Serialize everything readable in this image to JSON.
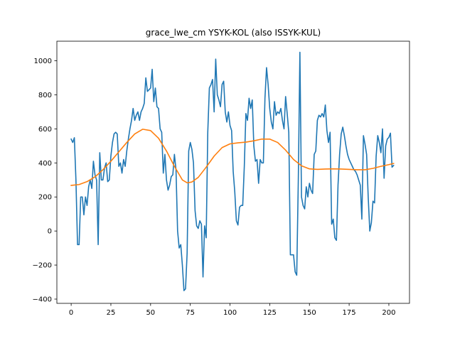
{
  "chart_data": {
    "type": "line",
    "title": "grace_lwe_cm YSYK-KOL (also ISSYK-KUL)",
    "xlabel": "",
    "ylabel": "",
    "xlim": [
      -9,
      213
    ],
    "ylim": [
      -425,
      1115
    ],
    "xticks": [
      0,
      25,
      50,
      75,
      100,
      125,
      150,
      175,
      200
    ],
    "yticks": [
      -400,
      -200,
      0,
      200,
      400,
      600,
      800,
      1000
    ],
    "grid": false,
    "legend": "none",
    "colors": {
      "series_0": "#1f77b4",
      "series_1": "#ff7f0e"
    },
    "series": [
      {
        "points": [
          [
            0,
            540
          ],
          [
            1,
            520
          ],
          [
            2,
            548
          ],
          [
            3,
            300
          ],
          [
            4,
            -80
          ],
          [
            5,
            -80
          ],
          [
            6,
            200
          ],
          [
            7,
            200
          ],
          [
            8,
            95
          ],
          [
            9,
            200
          ],
          [
            10,
            150
          ],
          [
            11,
            260
          ],
          [
            12,
            300
          ],
          [
            13,
            250
          ],
          [
            14,
            410
          ],
          [
            15,
            330
          ],
          [
            16,
            300
          ],
          [
            17,
            -80
          ],
          [
            18,
            460
          ],
          [
            19,
            300
          ],
          [
            20,
            300
          ],
          [
            21,
            370
          ],
          [
            22,
            400
          ],
          [
            23,
            290
          ],
          [
            24,
            300
          ],
          [
            25,
            440
          ],
          [
            26,
            520
          ],
          [
            27,
            570
          ],
          [
            28,
            580
          ],
          [
            29,
            570
          ],
          [
            30,
            380
          ],
          [
            31,
            400
          ],
          [
            32,
            340
          ],
          [
            33,
            420
          ],
          [
            34,
            380
          ],
          [
            35,
            470
          ],
          [
            36,
            540
          ],
          [
            37,
            600
          ],
          [
            38,
            650
          ],
          [
            39,
            720
          ],
          [
            40,
            650
          ],
          [
            41,
            680
          ],
          [
            42,
            700
          ],
          [
            43,
            650
          ],
          [
            44,
            700
          ],
          [
            45,
            720
          ],
          [
            46,
            750
          ],
          [
            47,
            900
          ],
          [
            48,
            820
          ],
          [
            49,
            830
          ],
          [
            50,
            840
          ],
          [
            51,
            950
          ],
          [
            52,
            760
          ],
          [
            53,
            840
          ],
          [
            54,
            730
          ],
          [
            55,
            720
          ],
          [
            56,
            600
          ],
          [
            57,
            580
          ],
          [
            58,
            340
          ],
          [
            59,
            450
          ],
          [
            60,
            300
          ],
          [
            61,
            240
          ],
          [
            62,
            270
          ],
          [
            63,
            320
          ],
          [
            64,
            330
          ],
          [
            65,
            450
          ],
          [
            66,
            360
          ],
          [
            67,
            0
          ],
          [
            68,
            -100
          ],
          [
            69,
            -80
          ],
          [
            70,
            -200
          ],
          [
            71,
            -350
          ],
          [
            72,
            -340
          ],
          [
            73,
            -130
          ],
          [
            74,
            470
          ],
          [
            75,
            520
          ],
          [
            76,
            480
          ],
          [
            77,
            400
          ],
          [
            78,
            120
          ],
          [
            79,
            30
          ],
          [
            80,
            15
          ],
          [
            81,
            60
          ],
          [
            82,
            40
          ],
          [
            83,
            -270
          ],
          [
            84,
            30
          ],
          [
            85,
            -40
          ],
          [
            86,
            580
          ],
          [
            87,
            840
          ],
          [
            88,
            860
          ],
          [
            89,
            890
          ],
          [
            90,
            700
          ],
          [
            91,
            1010
          ],
          [
            92,
            800
          ],
          [
            93,
            770
          ],
          [
            94,
            730
          ],
          [
            95,
            860
          ],
          [
            96,
            880
          ],
          [
            97,
            700
          ],
          [
            98,
            640
          ],
          [
            99,
            700
          ],
          [
            100,
            620
          ],
          [
            101,
            590
          ],
          [
            102,
            350
          ],
          [
            103,
            230
          ],
          [
            104,
            60
          ],
          [
            105,
            35
          ],
          [
            106,
            140
          ],
          [
            107,
            150
          ],
          [
            108,
            150
          ],
          [
            109,
            380
          ],
          [
            110,
            690
          ],
          [
            111,
            650
          ],
          [
            112,
            780
          ],
          [
            113,
            720
          ],
          [
            114,
            770
          ],
          [
            115,
            500
          ],
          [
            116,
            410
          ],
          [
            117,
            420
          ],
          [
            118,
            280
          ],
          [
            119,
            420
          ],
          [
            120,
            400
          ],
          [
            121,
            400
          ],
          [
            122,
            780
          ],
          [
            123,
            960
          ],
          [
            124,
            860
          ],
          [
            125,
            720
          ],
          [
            126,
            640
          ],
          [
            127,
            600
          ],
          [
            128,
            760
          ],
          [
            129,
            680
          ],
          [
            130,
            700
          ],
          [
            131,
            690
          ],
          [
            132,
            720
          ],
          [
            133,
            650
          ],
          [
            134,
            600
          ],
          [
            135,
            790
          ],
          [
            136,
            690
          ],
          [
            137,
            580
          ],
          [
            138,
            -140
          ],
          [
            139,
            -140
          ],
          [
            140,
            -140
          ],
          [
            141,
            -240
          ],
          [
            142,
            -260
          ],
          [
            143,
            300
          ],
          [
            144,
            1050
          ],
          [
            145,
            200
          ],
          [
            146,
            150
          ],
          [
            147,
            130
          ],
          [
            148,
            260
          ],
          [
            149,
            200
          ],
          [
            150,
            280
          ],
          [
            151,
            240
          ],
          [
            152,
            220
          ],
          [
            153,
            450
          ],
          [
            154,
            470
          ],
          [
            155,
            650
          ],
          [
            156,
            680
          ],
          [
            157,
            670
          ],
          [
            158,
            690
          ],
          [
            159,
            670
          ],
          [
            160,
            740
          ],
          [
            161,
            590
          ],
          [
            162,
            520
          ],
          [
            163,
            580
          ],
          [
            164,
            40
          ],
          [
            165,
            70
          ],
          [
            166,
            -40
          ],
          [
            167,
            -55
          ],
          [
            168,
            270
          ],
          [
            169,
            450
          ],
          [
            170,
            570
          ],
          [
            171,
            610
          ],
          [
            172,
            560
          ],
          [
            173,
            500
          ],
          [
            174,
            450
          ],
          [
            175,
            420
          ],
          [
            176,
            400
          ],
          [
            177,
            380
          ],
          [
            178,
            360
          ],
          [
            179,
            350
          ],
          [
            180,
            330
          ],
          [
            181,
            300
          ],
          [
            182,
            270
          ],
          [
            183,
            70
          ],
          [
            184,
            560
          ],
          [
            185,
            510
          ],
          [
            186,
            450
          ],
          [
            187,
            200
          ],
          [
            188,
            0
          ],
          [
            189,
            50
          ],
          [
            190,
            175
          ],
          [
            191,
            165
          ],
          [
            192,
            440
          ],
          [
            193,
            560
          ],
          [
            194,
            520
          ],
          [
            195,
            460
          ],
          [
            196,
            600
          ],
          [
            197,
            310
          ],
          [
            198,
            500
          ],
          [
            199,
            540
          ],
          [
            200,
            550
          ],
          [
            201,
            575
          ],
          [
            202,
            375
          ],
          [
            203,
            385
          ]
        ]
      },
      {
        "points": [
          [
            0,
            268
          ],
          [
            5,
            273
          ],
          [
            10,
            290
          ],
          [
            15,
            318
          ],
          [
            20,
            360
          ],
          [
            25,
            410
          ],
          [
            30,
            465
          ],
          [
            35,
            520
          ],
          [
            40,
            570
          ],
          [
            45,
            598
          ],
          [
            50,
            590
          ],
          [
            55,
            545
          ],
          [
            60,
            470
          ],
          [
            65,
            380
          ],
          [
            70,
            300
          ],
          [
            73,
            283
          ],
          [
            76,
            288
          ],
          [
            80,
            315
          ],
          [
            85,
            375
          ],
          [
            90,
            440
          ],
          [
            95,
            490
          ],
          [
            100,
            512
          ],
          [
            105,
            518
          ],
          [
            110,
            522
          ],
          [
            115,
            530
          ],
          [
            120,
            540
          ],
          [
            125,
            540
          ],
          [
            130,
            520
          ],
          [
            135,
            475
          ],
          [
            140,
            420
          ],
          [
            145,
            383
          ],
          [
            150,
            365
          ],
          [
            155,
            362
          ],
          [
            160,
            364
          ],
          [
            165,
            365
          ],
          [
            170,
            364
          ],
          [
            175,
            362
          ],
          [
            180,
            360
          ],
          [
            185,
            360
          ],
          [
            190,
            368
          ],
          [
            195,
            380
          ],
          [
            200,
            390
          ],
          [
            203,
            397
          ]
        ]
      }
    ]
  }
}
